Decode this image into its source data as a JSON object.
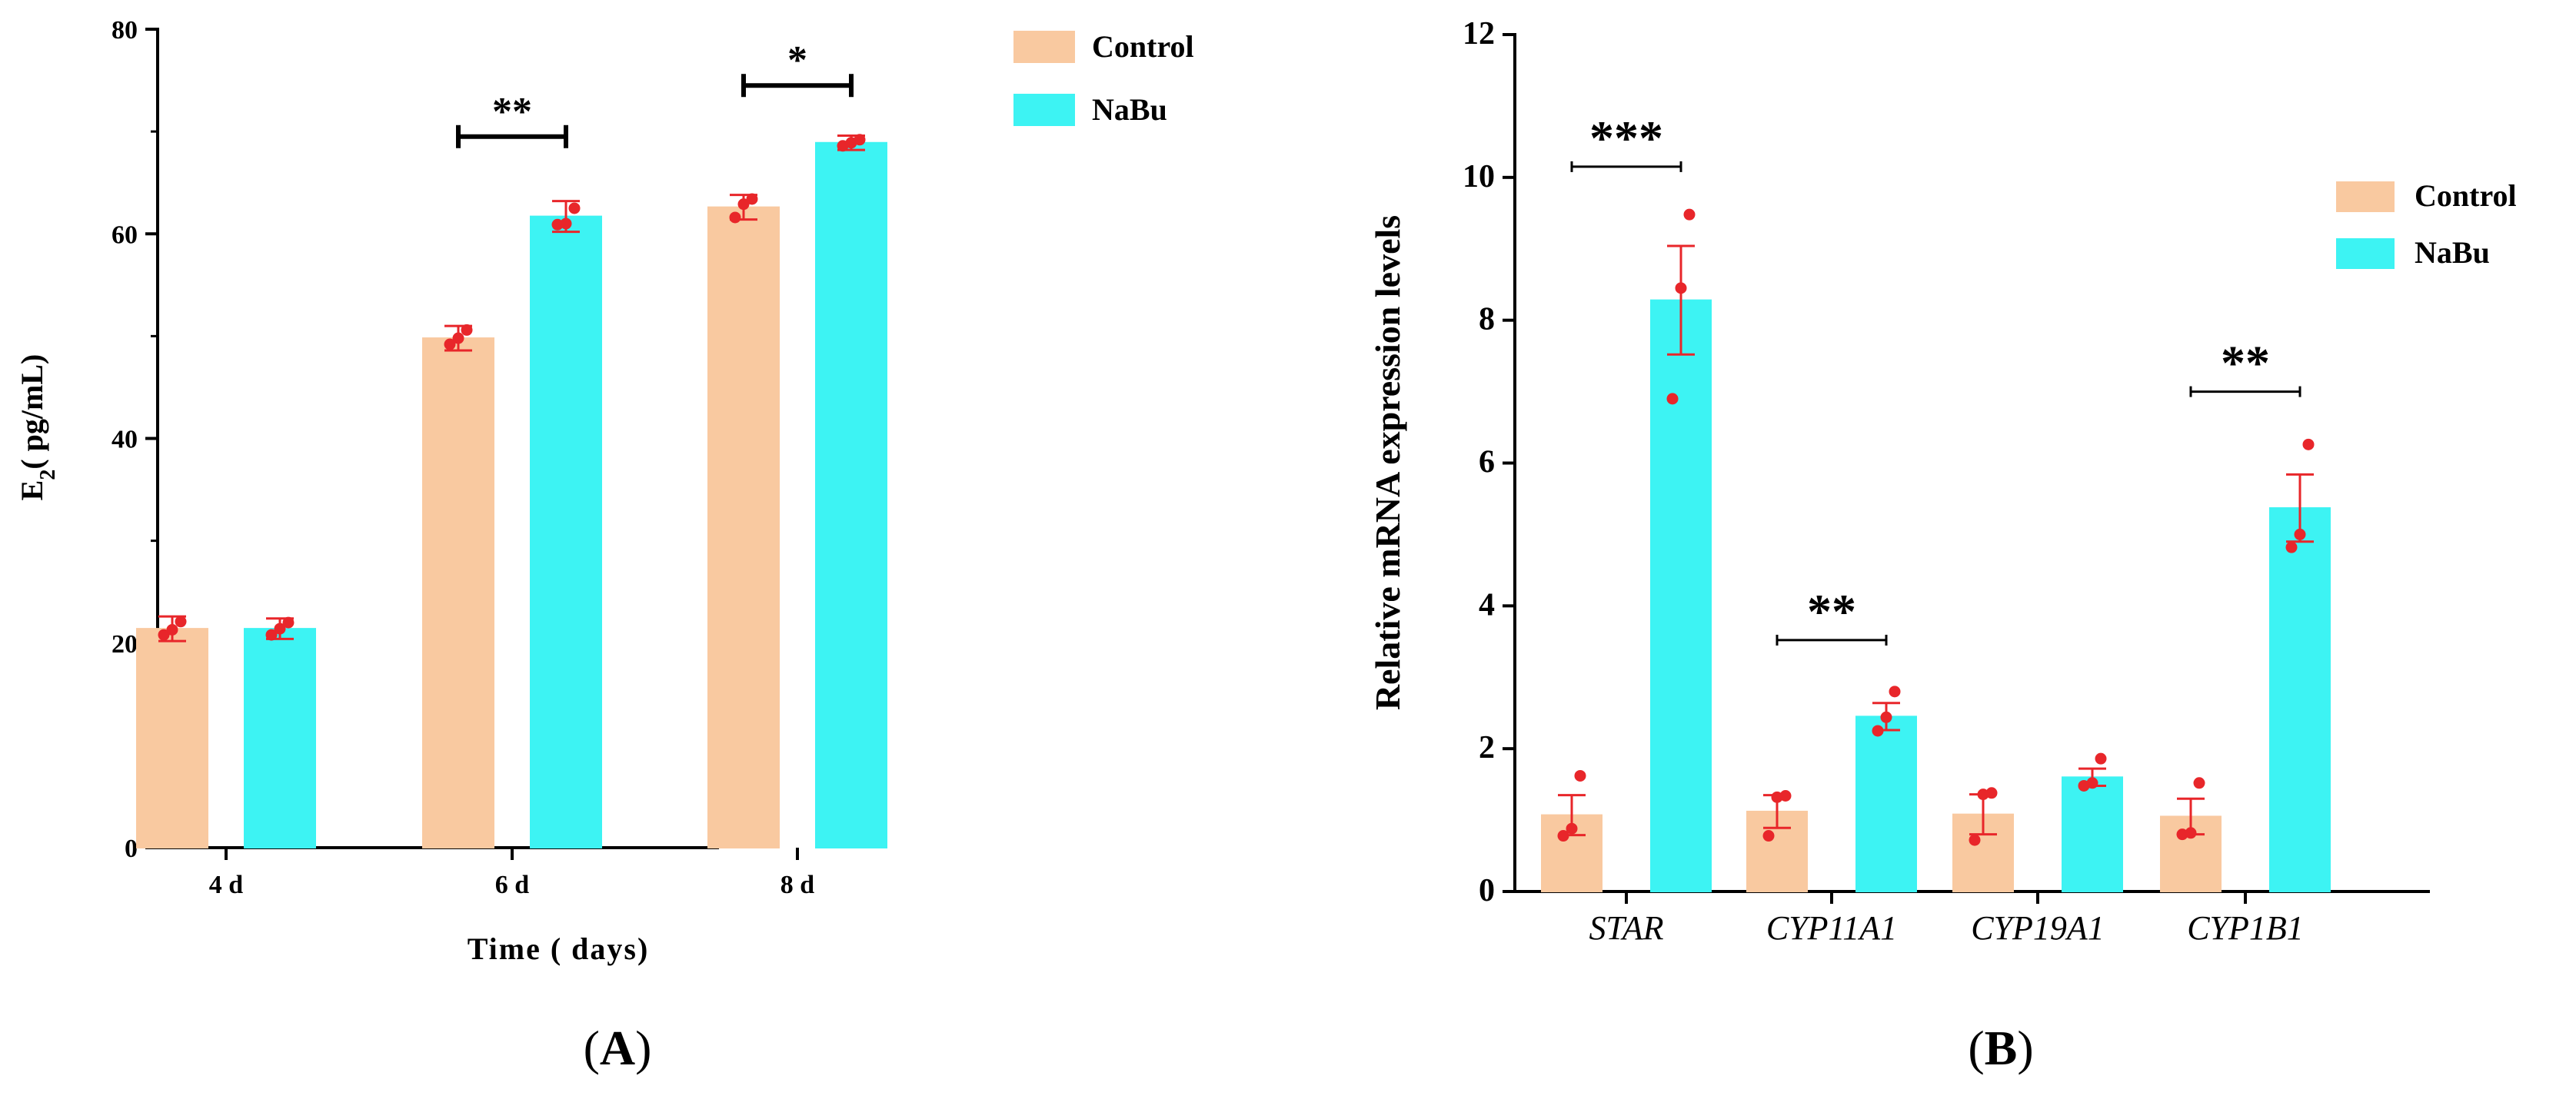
{
  "chart_data": [
    {
      "panel": "A",
      "type": "bar",
      "title": "",
      "xlabel": "Time ( days)",
      "ylabel": "E2 ( pg/mL)",
      "ylabel_parts": {
        "main": "E",
        "sub": "2",
        "rest": "( pg/mL)"
      },
      "ylim": [
        0,
        80
      ],
      "yticks": [
        0,
        20,
        40,
        60,
        80
      ],
      "grid": false,
      "legend_position": "top-right",
      "categories": [
        "4 d",
        "6 d",
        "8 d"
      ],
      "series": [
        {
          "name": "Control",
          "color": "#F9C9A0",
          "values": [
            21.4,
            49.8,
            62.6
          ],
          "errors": [
            1.2,
            1.2,
            1.2
          ],
          "points": [
            [
              20.8,
              21.3,
              22.1
            ],
            [
              49.2,
              49.8,
              50.6
            ],
            [
              61.6,
              62.9,
              63.4
            ]
          ]
        },
        {
          "name": "NaBu",
          "color": "#3DF3F3",
          "values": [
            21.4,
            61.7,
            68.9
          ],
          "errors": [
            1.0,
            1.5,
            0.7
          ],
          "points": [
            [
              20.8,
              21.4,
              22.0
            ],
            [
              60.9,
              61.0,
              62.5
            ],
            [
              68.6,
              68.9,
              69.2
            ]
          ]
        }
      ],
      "significance": [
        {
          "category_index": 1,
          "label": "**",
          "level": 69.5
        },
        {
          "category_index": 2,
          "label": "*",
          "level": 74.5
        }
      ],
      "panel_label": "A",
      "error_color": "#E8262A",
      "point_color": "#E8262A"
    },
    {
      "panel": "B",
      "type": "bar",
      "title": "",
      "xlabel": "",
      "ylabel": "Relative mRNA expression levels",
      "ylim": [
        0,
        12
      ],
      "yticks": [
        0,
        2,
        4,
        6,
        8,
        10,
        12
      ],
      "grid": false,
      "legend_position": "top-right",
      "categories": [
        "STAR",
        "CYP11A1",
        "CYP19A1",
        "CYP1B1"
      ],
      "series": [
        {
          "name": "Control",
          "color": "#F9C9A0",
          "values": [
            1.07,
            1.12,
            1.08,
            1.05
          ],
          "errors": [
            0.28,
            0.23,
            0.28,
            0.25
          ],
          "points": [
            [
              0.78,
              0.88,
              1.62
            ],
            [
              0.78,
              1.32,
              1.34
            ],
            [
              0.72,
              1.36,
              1.38
            ],
            [
              0.8,
              0.82,
              1.52
            ]
          ]
        },
        {
          "name": "NaBu",
          "color": "#3DF3F3",
          "values": [
            8.28,
            2.45,
            1.6,
            5.37
          ],
          "errors": [
            0.76,
            0.19,
            0.12,
            0.47
          ],
          "points": [
            [
              6.9,
              8.45,
              9.48
            ],
            [
              2.25,
              2.44,
              2.8
            ],
            [
              1.48,
              1.52,
              1.86
            ],
            [
              4.82,
              5.0,
              6.26
            ]
          ]
        }
      ],
      "significance": [
        {
          "category_index": 0,
          "label": "***",
          "level": 10.15
        },
        {
          "category_index": 1,
          "label": "**",
          "level": 3.52
        },
        {
          "category_index": 3,
          "label": "**",
          "level": 7.0
        }
      ],
      "panel_label": "B",
      "error_color": "#E8262A",
      "point_color": "#E8262A"
    }
  ]
}
